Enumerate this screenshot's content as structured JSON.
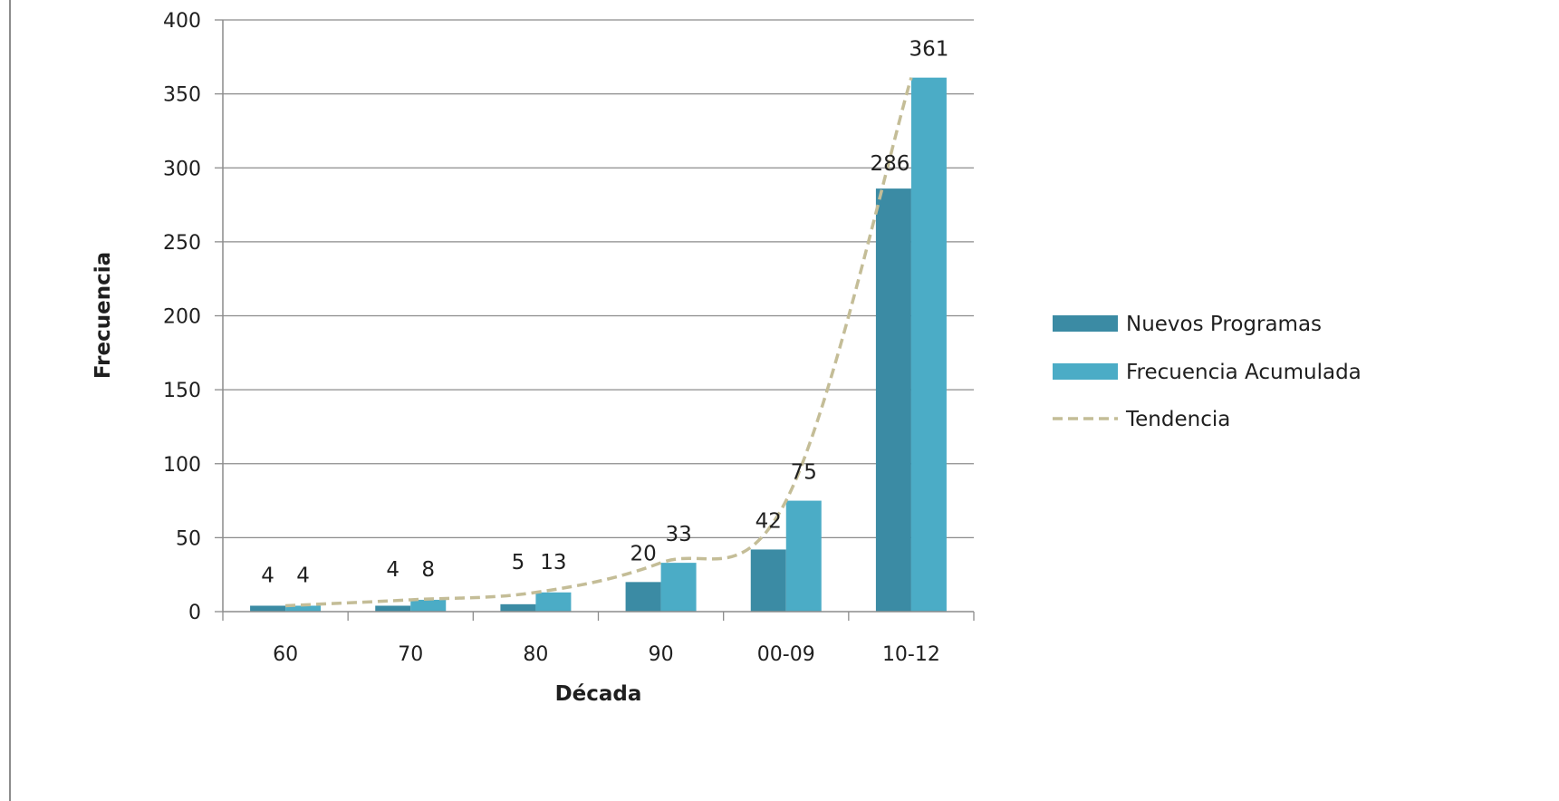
{
  "chart_data": {
    "type": "bar",
    "categories": [
      "60",
      "70",
      "80",
      "90",
      "00-09",
      "10-12"
    ],
    "series": [
      {
        "name": "Nuevos Programas",
        "values": [
          4,
          4,
          5,
          20,
          42,
          286
        ],
        "color": "#3b8ba4"
      },
      {
        "name": "Frecuencia Acumulada",
        "values": [
          4,
          8,
          13,
          33,
          75,
          361
        ],
        "color": "#4bacc6"
      }
    ],
    "trend": {
      "name": "Tendencia",
      "values": [
        4,
        8,
        13,
        33,
        75,
        361
      ],
      "color": "#c4bd97",
      "style": "dashed"
    },
    "xlabel": "Década",
    "ylabel": "Frecuencia",
    "ylim": [
      0,
      400
    ],
    "yticks": [
      0,
      50,
      100,
      150,
      200,
      250,
      300,
      350,
      400
    ],
    "grid": true,
    "legend_position": "right"
  }
}
